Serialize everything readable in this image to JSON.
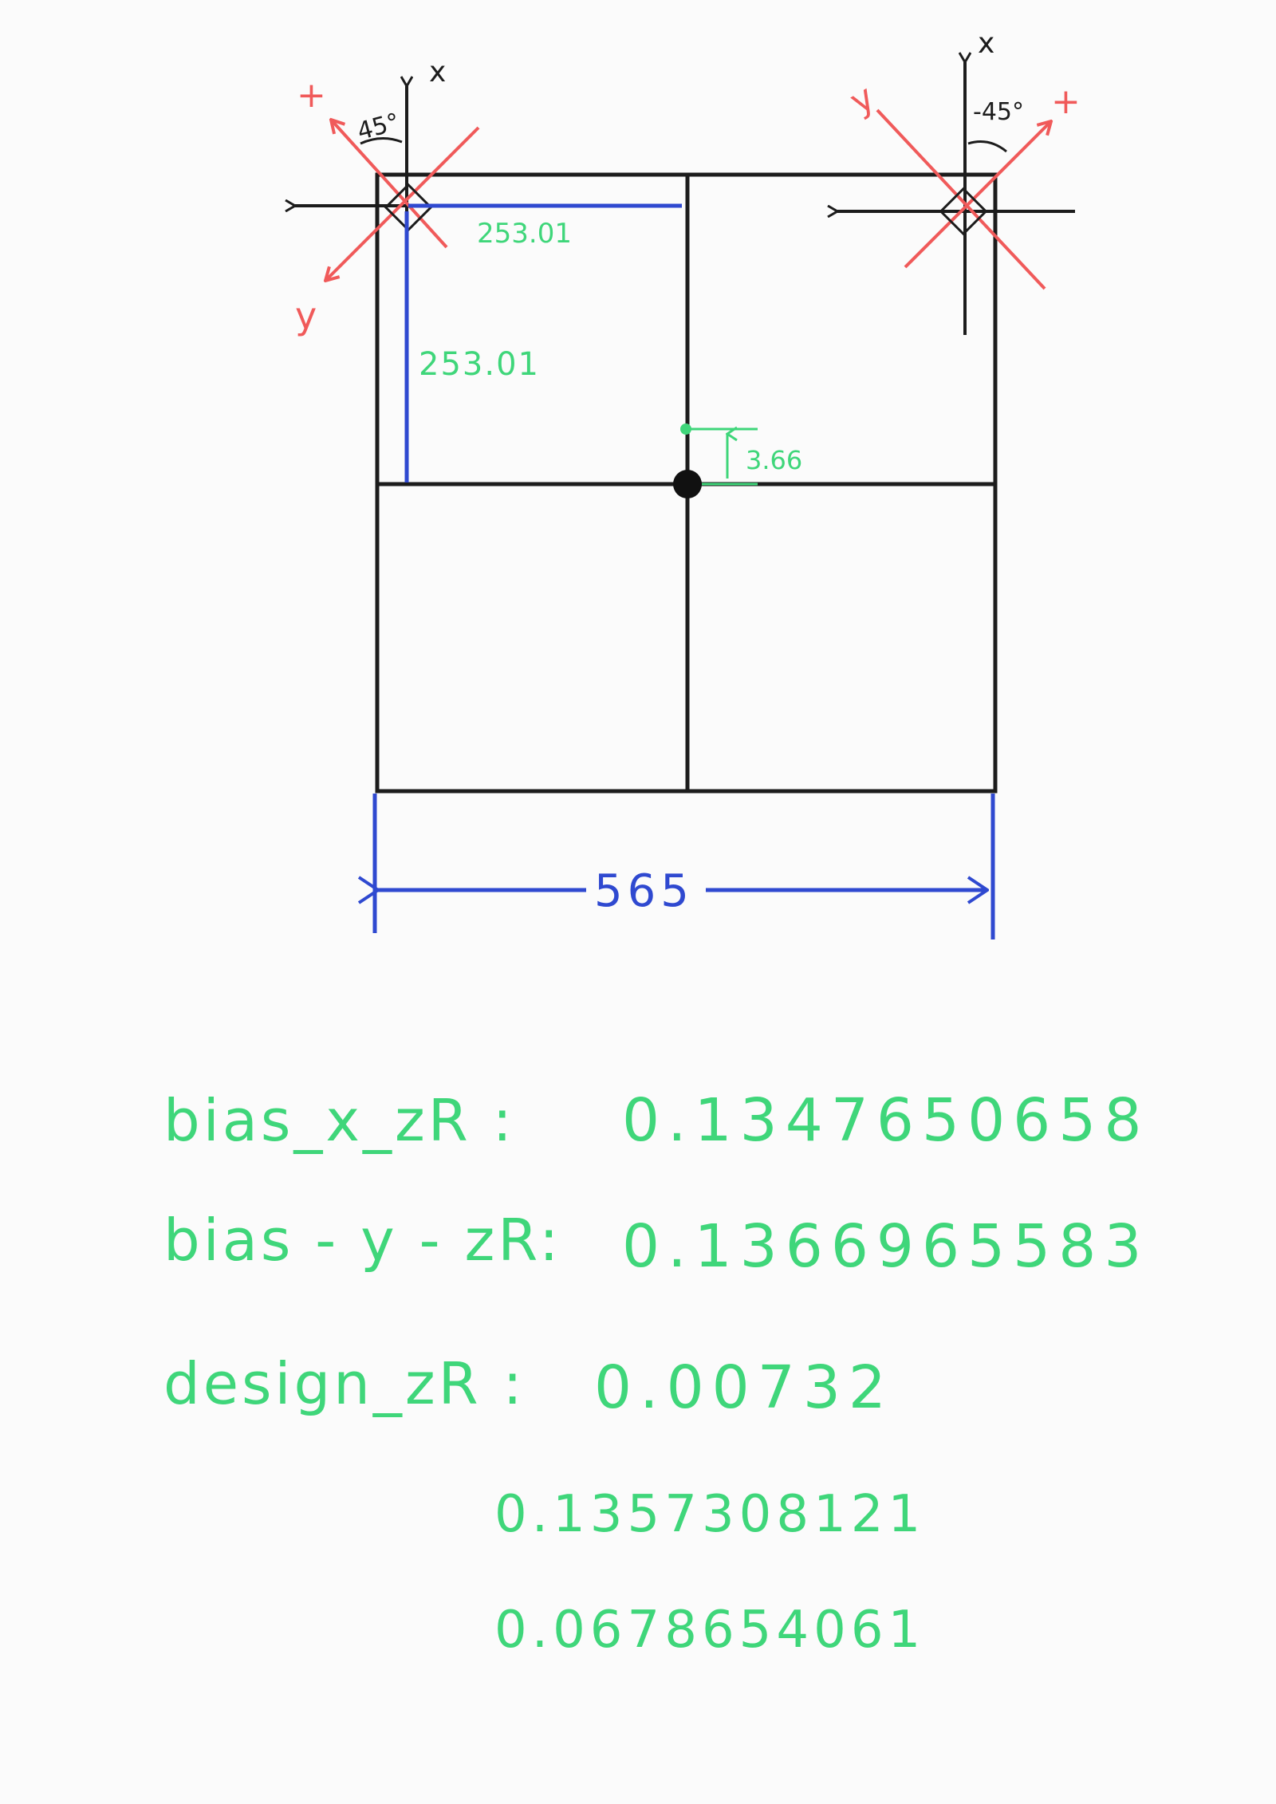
{
  "diagram": {
    "dimension_width": "565",
    "dimension_half_x": "253.01",
    "dimension_half_y": "253.01",
    "center_offset": "3.66",
    "left_axes": {
      "x_label": "x",
      "y_label": "y",
      "plus_label": "+",
      "angle_label": "45°"
    },
    "right_axes": {
      "x_label": "x",
      "y_label": "y",
      "plus_label": "+",
      "angle_label": "-45°"
    }
  },
  "notes": {
    "bias_x": {
      "label": "bias_x_zR :",
      "value": "0.1347650658"
    },
    "bias_y": {
      "label": "bias - y - zR:",
      "value": "0.1366965583"
    },
    "design": {
      "label": "design_zR :",
      "values": [
        "0.00732",
        "0.1357308121",
        "0.0678654061"
      ]
    }
  },
  "colors": {
    "ink": "#1c1c1c",
    "blue": "#2f49d0",
    "red": "#f05a5a",
    "green": "#3fd67a"
  }
}
